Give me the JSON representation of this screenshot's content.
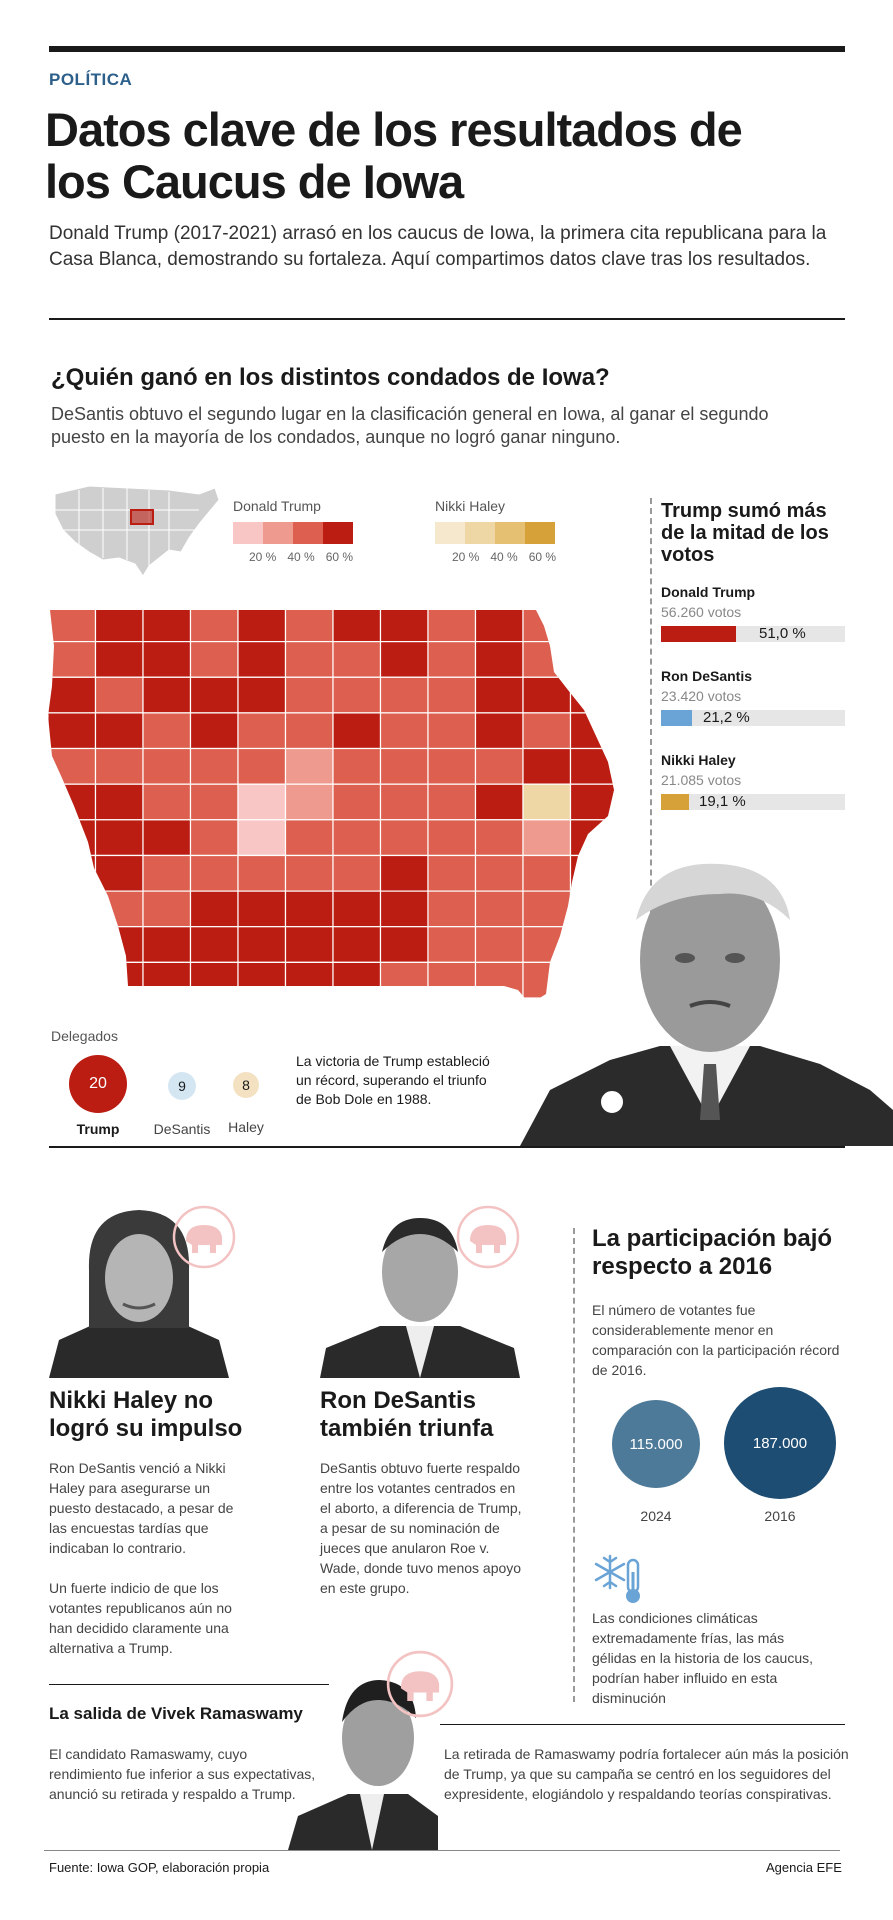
{
  "header": {
    "kicker": "POLÍTICA",
    "title": "Datos clave de los resultados de los Caucus de Iowa",
    "lede": "Donald Trump (2017-2021) arrasó en los caucus de Iowa, la primera cita republicana para la Casa Blanca, demostrando su fortaleza. Aquí compartimos datos clave tras los resultados."
  },
  "counties": {
    "title": "¿Quién ganó en los distintos condados de Iowa?",
    "subtitle": "DeSantis obtuvo el segundo lugar en la clasificación general en Iowa, al ganar el segundo puesto en la mayoría de los condados, aunque no logró ganar ninguno.",
    "legend": {
      "trump_label": "Donald Trump",
      "haley_label": "Nikki Haley",
      "ticks": [
        "20 %",
        "40 %",
        "60 %"
      ],
      "trump_colors": [
        "#f9c6c6",
        "#ef9a8f",
        "#dc5f4f",
        "#bb1d13"
      ],
      "haley_colors": [
        "#f6e8cc",
        "#efd7a5",
        "#e5bf72",
        "#d6a139"
      ]
    }
  },
  "results": {
    "title": "Trump sumó más de la mitad de los votos",
    "candidates": [
      {
        "name": "Donald Trump",
        "votes": "56.260 votos",
        "pct": "51,0 %",
        "share": 51.0,
        "color": "#bb1d13"
      },
      {
        "name": "Ron DeSantis",
        "votes": "23.420 votos",
        "pct": "21,2 %",
        "share": 21.2,
        "color": "#6aa3d5"
      },
      {
        "name": "Nikki Haley",
        "votes": "21.085 votos",
        "pct": "19,1 %",
        "share": 19.1,
        "color": "#d6a139"
      }
    ]
  },
  "delegates": {
    "label": "Delegados",
    "items": [
      {
        "name": "Trump",
        "count": "20",
        "value": 20,
        "color": "#bb1d13",
        "text_color": "#ffffff"
      },
      {
        "name": "DeSantis",
        "count": "9",
        "value": 9,
        "color": "#d5e6f3",
        "text_color": "#1a1a1a"
      },
      {
        "name": "Haley",
        "count": "8",
        "value": 8,
        "color": "#f3e1c2",
        "text_color": "#1a1a1a"
      }
    ],
    "note": "La victoria de Trump estableció un récord, superando el triunfo de Bob Dole en 1988."
  },
  "haley": {
    "title": "Nikki Haley no logró su impulso",
    "p1": "Ron DeSantis venció a Nikki Haley para asegurarse un puesto destacado, a pesar de las encuestas tardías que indicaban lo contrario.",
    "p2": "Un fuerte indicio de que los votantes republicanos aún no han decidido claramente una alternativa a Trump."
  },
  "desantis": {
    "title": "Ron DeSantis también triunfa",
    "p1": "DeSantis obtuvo fuerte respaldo entre los votantes centrados en el aborto, a diferencia de Trump, a pesar de su nominación de jueces que anularon Roe v. Wade, donde tuvo menos apoyo en este grupo."
  },
  "participation": {
    "title": "La participación bajó respecto a 2016",
    "intro": "El número de votantes fue considerablemente menor en comparación con la participación récord de  2016.",
    "bubbles": [
      {
        "year": "2024",
        "label": "115.000",
        "value": 115000,
        "color": "#4e7a99"
      },
      {
        "year": "2016",
        "label": "187.000",
        "value": 187000,
        "color": "#1e4d73"
      }
    ],
    "weather_note": "Las condiciones climáticas extremadamente frías, las más gélidas en la historia de los caucus, podrían haber influido en esta disminución",
    "weather_icon": "snowflake-thermometer-icon"
  },
  "vivek": {
    "title": "La salida de Vivek Ramaswamy",
    "left": "El candidato Ramaswamy, cuyo rendimiento fue inferior a sus expectativas, anunció su retirada y respaldo a Trump.",
    "right": "La retirada de Ramaswamy podría fortalecer aún más la posición de Trump, ya que su campaña se centró en los seguidores del expresidente, elogiándolo y respaldando teorías conspirativas."
  },
  "footer": {
    "source": "Fuente: Iowa GOP, elaboración propia",
    "agency": "Agencia EFE"
  },
  "icons": {
    "gop": "republican-elephant-icon"
  }
}
